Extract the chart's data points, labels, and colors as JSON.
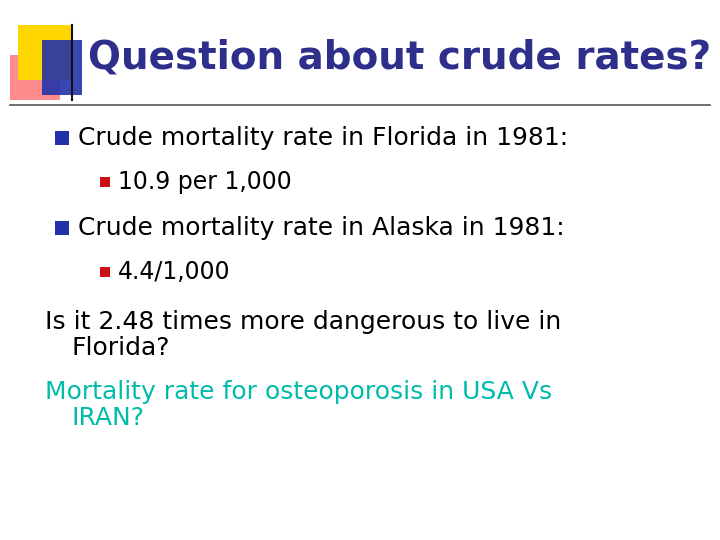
{
  "title": "Question about crude rates?",
  "title_color": "#2E2E8B",
  "background_color": "#FFFFFF",
  "bullet1": "Crude mortality rate in Florida in 1981:",
  "sub_bullet1": "10.9 per 1,000",
  "bullet2": "Crude mortality rate in Alaska in 1981:",
  "sub_bullet2": "4.4/1,000",
  "body_text1": "Is it 2.48 times more dangerous to live in",
  "body_text1b": "   Florida?",
  "body_text2": "Mortality rate for osteoporosis in USA Vs",
  "body_text2b": "   IRAN?",
  "body_text_color": "#000000",
  "highlight_text_color": "#00BBAA",
  "bullet_square_color": "#2233AA",
  "sub_bullet_square_color": "#CC1111",
  "title_font_size": 28,
  "bullet_font_size": 18,
  "sub_bullet_font_size": 17,
  "body_font_size": 18,
  "logo_yellow": "#FFD700",
  "logo_red": "#FF6666",
  "logo_blue": "#2233AA",
  "line_color": "#555555"
}
